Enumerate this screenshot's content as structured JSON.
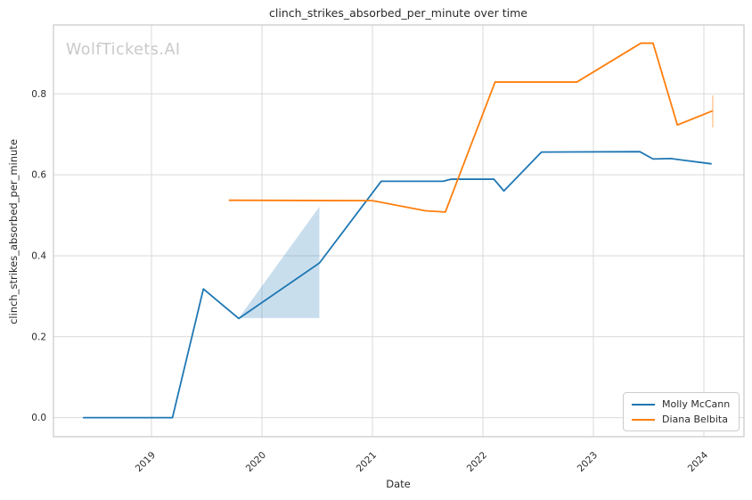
{
  "watermark": {
    "text": "WolfTickets.AI"
  },
  "chart_data": {
    "type": "line",
    "title": "clinch_strikes_absorbed_per_minute over time",
    "xlabel": "Date",
    "ylabel": "clinch_strikes_absorbed_per_minute",
    "x_ticks": [
      2019,
      2020,
      2021,
      2022,
      2023,
      2024
    ],
    "y_ticks": [
      0.0,
      0.2,
      0.4,
      0.6,
      0.8
    ],
    "xlim": [
      2018.113,
      2024.363
    ],
    "ylim": [
      -0.047,
      0.97
    ],
    "grid": true,
    "legend_position": "lower right",
    "series": [
      {
        "name": "Molly McCann",
        "color": "#1f77b4",
        "points": [
          [
            2018.38,
            0.0
          ],
          [
            2019.19,
            0.0
          ],
          [
            2019.47,
            0.318
          ],
          [
            2019.79,
            0.245
          ],
          [
            2020.52,
            0.382
          ],
          [
            2021.08,
            0.584
          ],
          [
            2021.64,
            0.584
          ],
          [
            2021.71,
            0.589
          ],
          [
            2022.1,
            0.589
          ],
          [
            2022.19,
            0.56
          ],
          [
            2022.53,
            0.656
          ],
          [
            2023.42,
            0.657
          ],
          [
            2023.54,
            0.639
          ],
          [
            2023.7,
            0.64
          ],
          [
            2024.07,
            0.627
          ]
        ]
      },
      {
        "name": "Diana Belbita",
        "color": "#ff7f0e",
        "points": [
          [
            2019.7,
            0.537
          ],
          [
            2021.0,
            0.536
          ],
          [
            2021.48,
            0.511
          ],
          [
            2021.66,
            0.508
          ],
          [
            2022.11,
            0.829
          ],
          [
            2022.85,
            0.829
          ],
          [
            2023.43,
            0.925
          ],
          [
            2023.54,
            0.925
          ],
          [
            2023.76,
            0.723
          ],
          [
            2024.08,
            0.758
          ]
        ],
        "error_bar": {
          "x": 2024.08,
          "y_low": 0.717,
          "y_high": 0.796
        }
      }
    ],
    "band": {
      "series": "Molly McCann",
      "color": "#1f77b4",
      "opacity": 0.24,
      "points": [
        [
          2019.79,
          0.246
        ],
        [
          2020.52,
          0.521
        ],
        [
          2020.52,
          0.246
        ]
      ]
    }
  }
}
